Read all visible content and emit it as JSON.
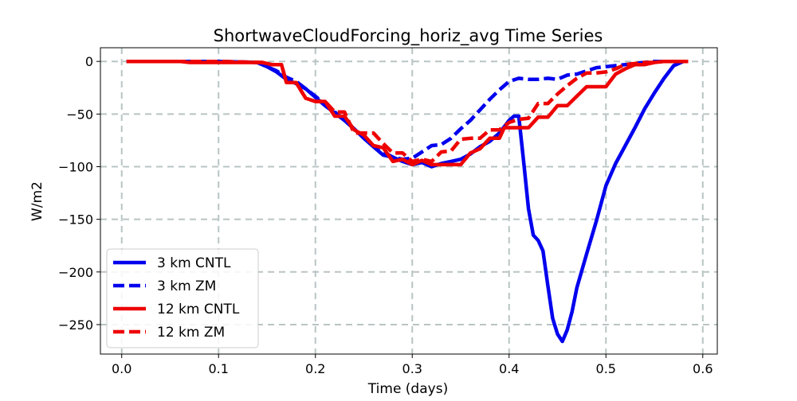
{
  "chart_data": {
    "type": "line",
    "title": "ShortwaveCloudForcing_horiz_avg Time Series",
    "xlabel": "Time (days)",
    "ylabel": "W/m2",
    "xlim": [
      -0.022,
      0.615
    ],
    "ylim": [
      -278,
      13
    ],
    "xticks": [
      0.0,
      0.1,
      0.2,
      0.3,
      0.4,
      0.5,
      0.6
    ],
    "xtick_labels": [
      "0.0",
      "0.1",
      "0.2",
      "0.3",
      "0.4",
      "0.5",
      "0.6"
    ],
    "yticks": [
      0,
      -50,
      -100,
      -150,
      -200,
      -250
    ],
    "ytick_labels": [
      "0",
      "−50",
      "−100",
      "−150",
      "−200",
      "−250"
    ],
    "grid": true,
    "legend_position": "lower-left",
    "series": [
      {
        "name": "3 km CNTL",
        "color": "#0000ee",
        "style": "solid",
        "points": [
          [
            0.005,
            0
          ],
          [
            0.1,
            0
          ],
          [
            0.14,
            -1
          ],
          [
            0.15,
            -5
          ],
          [
            0.16,
            -10
          ],
          [
            0.17,
            -17
          ],
          [
            0.18,
            -21
          ],
          [
            0.19,
            -26
          ],
          [
            0.2,
            -34
          ],
          [
            0.21,
            -42
          ],
          [
            0.22,
            -49
          ],
          [
            0.23,
            -56
          ],
          [
            0.24,
            -64
          ],
          [
            0.25,
            -73
          ],
          [
            0.26,
            -81
          ],
          [
            0.27,
            -89
          ],
          [
            0.28,
            -91
          ],
          [
            0.29,
            -95
          ],
          [
            0.3,
            -98
          ],
          [
            0.31,
            -96
          ],
          [
            0.32,
            -100
          ],
          [
            0.33,
            -97
          ],
          [
            0.34,
            -95
          ],
          [
            0.35,
            -93
          ],
          [
            0.36,
            -88
          ],
          [
            0.37,
            -81
          ],
          [
            0.38,
            -76
          ],
          [
            0.39,
            -68
          ],
          [
            0.4,
            -56
          ],
          [
            0.405,
            -52
          ],
          [
            0.41,
            -52
          ],
          [
            0.415,
            -95
          ],
          [
            0.42,
            -140
          ],
          [
            0.425,
            -165
          ],
          [
            0.43,
            -170
          ],
          [
            0.435,
            -180
          ],
          [
            0.44,
            -213
          ],
          [
            0.445,
            -244
          ],
          [
            0.45,
            -259
          ],
          [
            0.455,
            -266
          ],
          [
            0.46,
            -255
          ],
          [
            0.465,
            -238
          ],
          [
            0.47,
            -215
          ],
          [
            0.48,
            -183
          ],
          [
            0.49,
            -152
          ],
          [
            0.5,
            -118
          ],
          [
            0.51,
            -97
          ],
          [
            0.52,
            -80
          ],
          [
            0.53,
            -63
          ],
          [
            0.54,
            -45
          ],
          [
            0.55,
            -30
          ],
          [
            0.56,
            -16
          ],
          [
            0.57,
            -4
          ],
          [
            0.58,
            0
          ],
          [
            0.585,
            0
          ]
        ]
      },
      {
        "name": "3 km ZM",
        "color": "#0000ee",
        "style": "dashed",
        "points": [
          [
            0.005,
            0
          ],
          [
            0.1,
            0
          ],
          [
            0.14,
            -1
          ],
          [
            0.15,
            -5
          ],
          [
            0.16,
            -9
          ],
          [
            0.17,
            -15
          ],
          [
            0.18,
            -19
          ],
          [
            0.19,
            -26
          ],
          [
            0.2,
            -33
          ],
          [
            0.21,
            -41
          ],
          [
            0.22,
            -48
          ],
          [
            0.23,
            -56
          ],
          [
            0.24,
            -64
          ],
          [
            0.25,
            -72
          ],
          [
            0.26,
            -80
          ],
          [
            0.27,
            -86
          ],
          [
            0.28,
            -91
          ],
          [
            0.29,
            -93
          ],
          [
            0.3,
            -92
          ],
          [
            0.31,
            -86
          ],
          [
            0.32,
            -80
          ],
          [
            0.33,
            -79
          ],
          [
            0.34,
            -73
          ],
          [
            0.35,
            -64
          ],
          [
            0.36,
            -56
          ],
          [
            0.37,
            -46
          ],
          [
            0.38,
            -36
          ],
          [
            0.39,
            -27
          ],
          [
            0.4,
            -19
          ],
          [
            0.41,
            -16
          ],
          [
            0.42,
            -17
          ],
          [
            0.43,
            -17
          ],
          [
            0.44,
            -16
          ],
          [
            0.45,
            -17
          ],
          [
            0.46,
            -13
          ],
          [
            0.47,
            -12
          ],
          [
            0.48,
            -9
          ],
          [
            0.49,
            -6
          ],
          [
            0.5,
            -5
          ],
          [
            0.51,
            -4
          ],
          [
            0.52,
            -3
          ],
          [
            0.53,
            -2
          ],
          [
            0.54,
            -1
          ],
          [
            0.55,
            0
          ],
          [
            0.585,
            0
          ]
        ]
      },
      {
        "name": "12 km CNTL",
        "color": "#ee0000",
        "style": "solid",
        "points": [
          [
            0.005,
            0
          ],
          [
            0.06,
            0
          ],
          [
            0.07,
            -1
          ],
          [
            0.1,
            -1
          ],
          [
            0.145,
            -1
          ],
          [
            0.155,
            -3
          ],
          [
            0.165,
            -3
          ],
          [
            0.17,
            -20
          ],
          [
            0.18,
            -20
          ],
          [
            0.19,
            -35
          ],
          [
            0.2,
            -38
          ],
          [
            0.21,
            -38
          ],
          [
            0.22,
            -52
          ],
          [
            0.23,
            -52
          ],
          [
            0.24,
            -65
          ],
          [
            0.25,
            -70
          ],
          [
            0.26,
            -80
          ],
          [
            0.27,
            -82
          ],
          [
            0.28,
            -95
          ],
          [
            0.29,
            -93
          ],
          [
            0.3,
            -98
          ],
          [
            0.31,
            -94
          ],
          [
            0.32,
            -98
          ],
          [
            0.35,
            -98
          ],
          [
            0.36,
            -87
          ],
          [
            0.37,
            -83
          ],
          [
            0.38,
            -73
          ],
          [
            0.39,
            -73
          ],
          [
            0.395,
            -63
          ],
          [
            0.41,
            -63
          ],
          [
            0.42,
            -63
          ],
          [
            0.43,
            -53
          ],
          [
            0.44,
            -53
          ],
          [
            0.45,
            -42
          ],
          [
            0.46,
            -42
          ],
          [
            0.47,
            -33
          ],
          [
            0.48,
            -24
          ],
          [
            0.49,
            -24
          ],
          [
            0.5,
            -24
          ],
          [
            0.51,
            -12
          ],
          [
            0.52,
            -7
          ],
          [
            0.53,
            -3
          ],
          [
            0.54,
            -3
          ],
          [
            0.55,
            -1
          ],
          [
            0.56,
            0
          ],
          [
            0.585,
            0
          ]
        ]
      },
      {
        "name": "12 km ZM",
        "color": "#ee0000",
        "style": "dashed",
        "points": [
          [
            0.005,
            0
          ],
          [
            0.1,
            0
          ],
          [
            0.145,
            -1
          ],
          [
            0.155,
            -3
          ],
          [
            0.165,
            -3
          ],
          [
            0.17,
            -20
          ],
          [
            0.18,
            -20
          ],
          [
            0.19,
            -35
          ],
          [
            0.2,
            -38
          ],
          [
            0.21,
            -38
          ],
          [
            0.22,
            -48
          ],
          [
            0.23,
            -48
          ],
          [
            0.24,
            -68
          ],
          [
            0.26,
            -68
          ],
          [
            0.27,
            -78
          ],
          [
            0.28,
            -87
          ],
          [
            0.29,
            -87
          ],
          [
            0.3,
            -95
          ],
          [
            0.31,
            -93
          ],
          [
            0.32,
            -95
          ],
          [
            0.33,
            -86
          ],
          [
            0.34,
            -85
          ],
          [
            0.35,
            -74
          ],
          [
            0.36,
            -73
          ],
          [
            0.37,
            -73
          ],
          [
            0.38,
            -65
          ],
          [
            0.39,
            -65
          ],
          [
            0.4,
            -58
          ],
          [
            0.41,
            -55
          ],
          [
            0.42,
            -54
          ],
          [
            0.43,
            -40
          ],
          [
            0.44,
            -40
          ],
          [
            0.45,
            -31
          ],
          [
            0.46,
            -23
          ],
          [
            0.47,
            -16
          ],
          [
            0.48,
            -11
          ],
          [
            0.49,
            -11
          ],
          [
            0.5,
            -10
          ],
          [
            0.51,
            -7
          ],
          [
            0.52,
            -3
          ],
          [
            0.53,
            -2
          ],
          [
            0.54,
            -1
          ],
          [
            0.55,
            -1
          ],
          [
            0.56,
            0
          ],
          [
            0.585,
            0
          ]
        ]
      }
    ]
  }
}
